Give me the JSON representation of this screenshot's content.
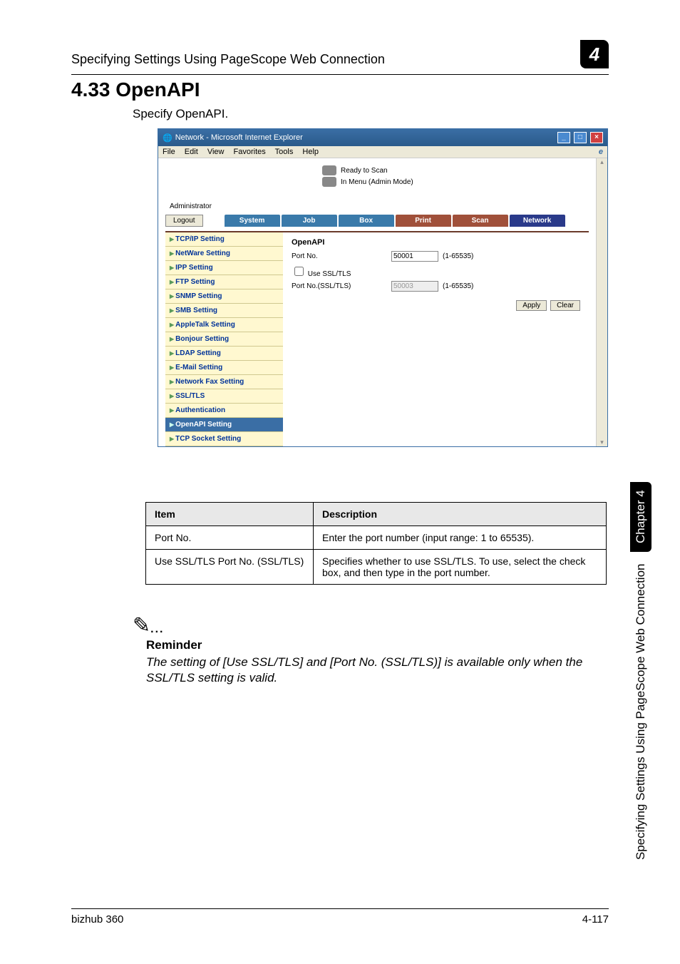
{
  "header": {
    "running_title": "Specifying Settings Using PageScope Web Connection",
    "chapter_number": "4"
  },
  "section": {
    "number_title": "4.33   OpenAPI",
    "intro": "Specify OpenAPI."
  },
  "browser": {
    "title": "Network - Microsoft Internet Explorer",
    "menu": {
      "file": "File",
      "edit": "Edit",
      "view": "View",
      "favorites": "Favorites",
      "tools": "Tools",
      "help": "Help"
    },
    "status": {
      "line1": "Ready to Scan",
      "line2": "In Menu (Admin Mode)"
    },
    "admin_label": "Administrator",
    "logout_label": "Logout",
    "tabs": {
      "system": "System",
      "job": "Job",
      "box": "Box",
      "print": "Print",
      "scan": "Scan",
      "network": "Network"
    },
    "sidebar": [
      "TCP/IP Setting",
      "NetWare Setting",
      "IPP Setting",
      "FTP Setting",
      "SNMP Setting",
      "SMB Setting",
      "AppleTalk Setting",
      "Bonjour Setting",
      "LDAP Setting",
      "E-Mail Setting",
      "Network Fax Setting",
      "SSL/TLS",
      "Authentication",
      "OpenAPI Setting",
      "TCP Socket Setting"
    ],
    "panel": {
      "heading": "OpenAPI",
      "port_label": "Port No.",
      "port_value": "50001",
      "range": "(1-65535)",
      "use_ssl_label": "Use SSL/TLS",
      "ssl_port_label": "Port No.(SSL/TLS)",
      "ssl_port_value": "50003",
      "apply": "Apply",
      "clear": "Clear"
    }
  },
  "table": {
    "col1": "Item",
    "col2": "Description",
    "rows": [
      {
        "item": "Port No.",
        "desc": "Enter the port number (input range: 1 to 65535)."
      },
      {
        "item": "Use SSL/TLS Port No. (SSL/TLS)",
        "desc": "Specifies whether to use SSL/TLS. To use, select the check box, and then type in the port number."
      }
    ]
  },
  "note": {
    "label": "Reminder",
    "body": "The setting of [Use SSL/TLS] and [Port No. (SSL/TLS)] is available only when the SSL/TLS setting is valid."
  },
  "side": {
    "text": "Specifying Settings Using PageScope Web Connection",
    "chapter": "Chapter 4"
  },
  "footer": {
    "left": "bizhub 360",
    "right": "4-117"
  }
}
